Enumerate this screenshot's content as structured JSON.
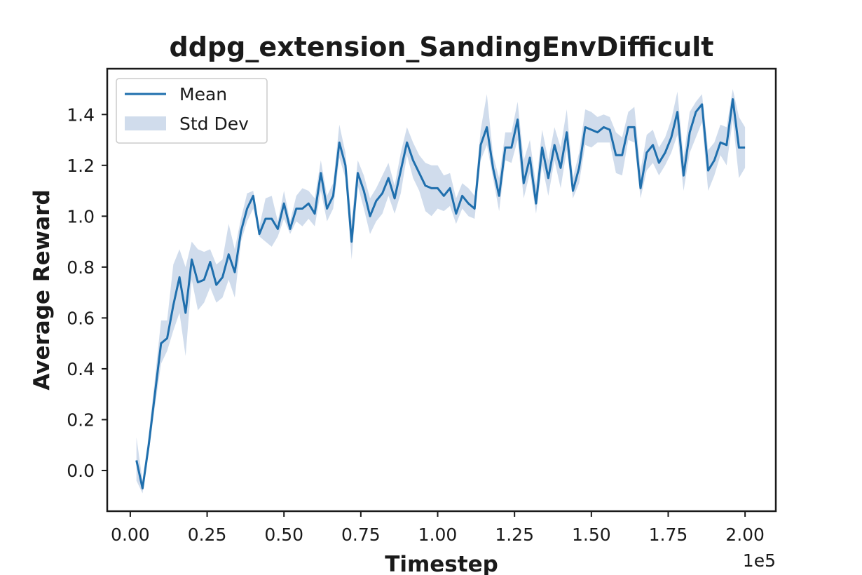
{
  "chart_data": {
    "type": "line",
    "title": "ddpg_extension_SandingEnvDifficult",
    "xlabel": "Timestep",
    "ylabel": "Average Reward",
    "x_offset_text": "1e5",
    "xlim": [
      -0.075,
      2.1
    ],
    "ylim": [
      -0.16,
      1.58
    ],
    "xticks": [
      0.0,
      0.25,
      0.5,
      0.75,
      1.0,
      1.25,
      1.5,
      1.75,
      2.0
    ],
    "xtick_labels": [
      "0.00",
      "0.25",
      "0.50",
      "0.75",
      "1.00",
      "1.25",
      "1.50",
      "1.75",
      "2.00"
    ],
    "yticks": [
      0.0,
      0.2,
      0.4,
      0.6,
      0.8,
      1.0,
      1.2,
      1.4
    ],
    "ytick_labels": [
      "0.0",
      "0.2",
      "0.4",
      "0.6",
      "0.8",
      "1.0",
      "1.2",
      "1.4"
    ],
    "legend_position": "top-left",
    "grid": false,
    "colors": {
      "mean": "#1f6fad",
      "std": "#b0c4e0"
    },
    "series": [
      {
        "name": "Mean",
        "x": [
          0.02,
          0.04,
          0.06,
          0.08,
          0.1,
          0.12,
          0.14,
          0.16,
          0.18,
          0.2,
          0.22,
          0.24,
          0.26,
          0.28,
          0.3,
          0.32,
          0.34,
          0.36,
          0.38,
          0.4,
          0.42,
          0.44,
          0.46,
          0.48,
          0.5,
          0.52,
          0.54,
          0.56,
          0.58,
          0.6,
          0.62,
          0.64,
          0.66,
          0.68,
          0.7,
          0.72,
          0.74,
          0.76,
          0.78,
          0.8,
          0.82,
          0.84,
          0.86,
          0.88,
          0.9,
          0.92,
          0.94,
          0.96,
          0.98,
          1.0,
          1.02,
          1.04,
          1.06,
          1.08,
          1.1,
          1.12,
          1.14,
          1.16,
          1.18,
          1.2,
          1.22,
          1.24,
          1.26,
          1.28,
          1.3,
          1.32,
          1.34,
          1.36,
          1.38,
          1.4,
          1.42,
          1.44,
          1.46,
          1.48,
          1.5,
          1.52,
          1.54,
          1.56,
          1.58,
          1.6,
          1.62,
          1.64,
          1.66,
          1.68,
          1.7,
          1.72,
          1.74,
          1.76,
          1.78,
          1.8,
          1.82,
          1.84,
          1.86,
          1.88,
          1.9,
          1.92,
          1.94,
          1.96,
          1.98,
          2.0
        ],
        "values": [
          0.04,
          -0.07,
          0.1,
          0.3,
          0.5,
          0.52,
          0.65,
          0.76,
          0.62,
          0.83,
          0.74,
          0.75,
          0.82,
          0.73,
          0.76,
          0.85,
          0.78,
          0.94,
          1.03,
          1.08,
          0.93,
          0.99,
          0.99,
          0.95,
          1.05,
          0.95,
          1.03,
          1.03,
          1.05,
          1.01,
          1.17,
          1.03,
          1.08,
          1.29,
          1.2,
          0.9,
          1.17,
          1.1,
          1.0,
          1.06,
          1.09,
          1.15,
          1.07,
          1.18,
          1.29,
          1.22,
          1.17,
          1.12,
          1.11,
          1.11,
          1.08,
          1.11,
          1.01,
          1.08,
          1.05,
          1.03,
          1.28,
          1.35,
          1.19,
          1.08,
          1.27,
          1.27,
          1.38,
          1.13,
          1.23,
          1.05,
          1.27,
          1.15,
          1.28,
          1.19,
          1.33,
          1.1,
          1.19,
          1.35,
          1.34,
          1.33,
          1.35,
          1.34,
          1.24,
          1.24,
          1.35,
          1.35,
          1.11,
          1.25,
          1.28,
          1.21,
          1.25,
          1.31,
          1.41,
          1.16,
          1.33,
          1.41,
          1.44,
          1.18,
          1.22,
          1.29,
          1.28,
          1.46,
          1.27,
          1.27
        ]
      },
      {
        "name": "Std Dev",
        "lower": [
          -0.04,
          -0.09,
          0.07,
          0.25,
          0.42,
          0.47,
          0.55,
          0.62,
          0.45,
          0.75,
          0.63,
          0.66,
          0.72,
          0.66,
          0.68,
          0.75,
          0.68,
          0.9,
          0.98,
          1.03,
          0.92,
          0.9,
          0.88,
          0.92,
          0.99,
          0.93,
          0.98,
          0.96,
          0.99,
          0.96,
          1.1,
          0.98,
          1.03,
          1.23,
          1.15,
          0.83,
          1.12,
          1.03,
          0.93,
          0.98,
          1.01,
          1.08,
          1.01,
          1.09,
          1.24,
          1.15,
          1.1,
          1.02,
          1.0,
          1.03,
          1.02,
          1.04,
          0.97,
          1.03,
          1.0,
          0.99,
          1.22,
          1.28,
          1.15,
          1.02,
          1.22,
          1.21,
          1.3,
          1.07,
          1.17,
          1.01,
          1.2,
          1.08,
          1.22,
          1.11,
          1.26,
          1.07,
          1.13,
          1.28,
          1.27,
          1.29,
          1.29,
          1.29,
          1.17,
          1.16,
          1.3,
          1.29,
          1.07,
          1.18,
          1.21,
          1.16,
          1.2,
          1.25,
          1.32,
          1.1,
          1.25,
          1.31,
          1.37,
          1.1,
          1.16,
          1.24,
          1.2,
          1.38,
          1.15,
          1.19
        ],
        "upper": [
          0.13,
          -0.04,
          0.14,
          0.36,
          0.59,
          0.59,
          0.81,
          0.87,
          0.8,
          0.9,
          0.87,
          0.86,
          0.87,
          0.81,
          0.83,
          0.97,
          0.87,
          0.99,
          1.09,
          1.1,
          0.96,
          1.07,
          1.08,
          0.98,
          1.1,
          0.98,
          1.08,
          1.11,
          1.1,
          1.07,
          1.22,
          1.08,
          1.13,
          1.36,
          1.25,
          0.98,
          1.22,
          1.16,
          1.07,
          1.11,
          1.16,
          1.21,
          1.12,
          1.25,
          1.35,
          1.29,
          1.24,
          1.21,
          1.2,
          1.2,
          1.16,
          1.17,
          1.07,
          1.13,
          1.11,
          1.08,
          1.34,
          1.48,
          1.24,
          1.15,
          1.33,
          1.33,
          1.45,
          1.22,
          1.3,
          1.12,
          1.34,
          1.22,
          1.35,
          1.27,
          1.42,
          1.15,
          1.25,
          1.42,
          1.41,
          1.39,
          1.4,
          1.39,
          1.33,
          1.31,
          1.41,
          1.43,
          1.18,
          1.32,
          1.34,
          1.27,
          1.31,
          1.38,
          1.49,
          1.23,
          1.41,
          1.45,
          1.48,
          1.26,
          1.29,
          1.36,
          1.35,
          1.5,
          1.39,
          1.35
        ]
      }
    ]
  }
}
